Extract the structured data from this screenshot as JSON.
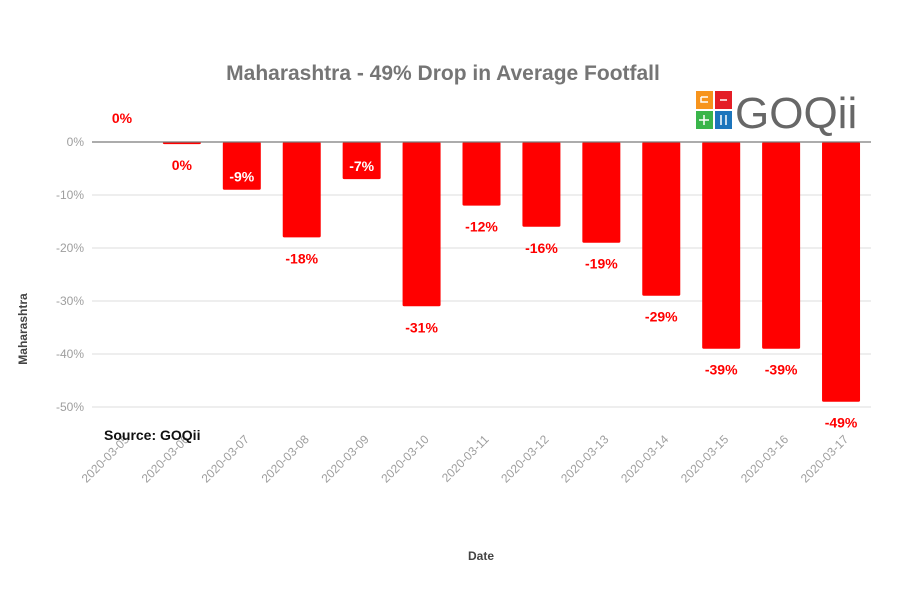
{
  "chart_data": {
    "type": "bar",
    "title": "Maharashtra - 49% Drop in Average Footfall",
    "xlabel": "Date",
    "ylabel": "Maharashtra",
    "ylim": [
      -50,
      0
    ],
    "grid": true,
    "yticks": [
      0,
      -10,
      -20,
      -30,
      -40,
      -50
    ],
    "ytick_labels": [
      "0%",
      "-10%",
      "-20%",
      "-30%",
      "-40%",
      "-50%"
    ],
    "categories": [
      "2020-03-05",
      "2020-03-06",
      "2020-03-07",
      "2020-03-08",
      "2020-03-09",
      "2020-03-10",
      "2020-03-11",
      "2020-03-12",
      "2020-03-13",
      "2020-03-14",
      "2020-03-15",
      "2020-03-16",
      "2020-03-17"
    ],
    "values": [
      0,
      -0.4,
      -9,
      -18,
      -7,
      -31,
      -12,
      -16,
      -19,
      -29,
      -39,
      -39,
      -49
    ],
    "data_labels": [
      "0%",
      "0%",
      "-9%",
      "-18%",
      "-7%",
      "-31%",
      "-12%",
      "-16%",
      "-19%",
      "-29%",
      "-39%",
      "-39%",
      "-49%"
    ],
    "label_inside": [
      false,
      false,
      true,
      false,
      true,
      false,
      false,
      false,
      false,
      false,
      false,
      false,
      false
    ],
    "bar_color": "#ff0000",
    "legend": "none",
    "annotation": "Source: GOQii"
  },
  "logo": {
    "text": "GOQii",
    "tile_colors": [
      "#f7941d",
      "#e41e26",
      "#39b54a",
      "#1c75bc"
    ]
  }
}
